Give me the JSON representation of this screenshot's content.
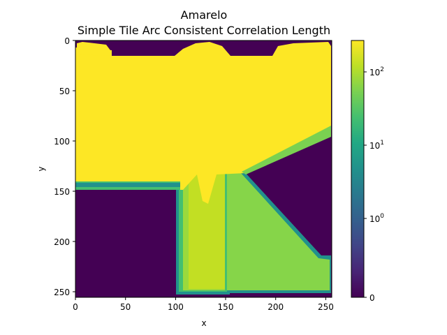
{
  "chart_data": {
    "type": "heatmap",
    "title": "Amarelo",
    "subtitle": "Simple Tile Arc Consistent Correlation Length",
    "xlabel": "x",
    "ylabel": "y",
    "xlim": [
      0,
      255
    ],
    "ylim": [
      255,
      0
    ],
    "x_ticks": [
      "0",
      "50",
      "100",
      "150",
      "200",
      "250"
    ],
    "y_ticks": [
      "0",
      "50",
      "100",
      "150",
      "200",
      "250"
    ],
    "colormap": "viridis",
    "colorbar": {
      "scale": "symlog",
      "range": [
        0,
        300
      ],
      "ticks": [
        {
          "value": 0,
          "label": "0"
        },
        {
          "value": 1,
          "base": "10",
          "exp": "0"
        },
        {
          "value": 10,
          "base": "10",
          "exp": "1"
        },
        {
          "value": 100,
          "base": "10",
          "exp": "2"
        }
      ]
    },
    "regions": [
      {
        "name": "upper block",
        "x_range": [
          0,
          250
        ],
        "y_range": [
          15,
          140
        ],
        "value": 300
      },
      {
        "name": "top bumps",
        "x_range": [
          0,
          250
        ],
        "y_range": [
          0,
          15
        ],
        "value": 300
      },
      {
        "name": "lower stem",
        "x_range": [
          100,
          150
        ],
        "y_range": [
          140,
          250
        ],
        "value": 170
      },
      {
        "name": "triangle wedge",
        "x_range": [
          150,
          255
        ],
        "y_range": [
          130,
          250
        ],
        "value": 60
      },
      {
        "name": "background",
        "value": 0
      }
    ],
    "colors": {
      "background": "#440154",
      "high": "#fde725",
      "stem": "#c2df23",
      "wedge": "#86d549"
    }
  }
}
